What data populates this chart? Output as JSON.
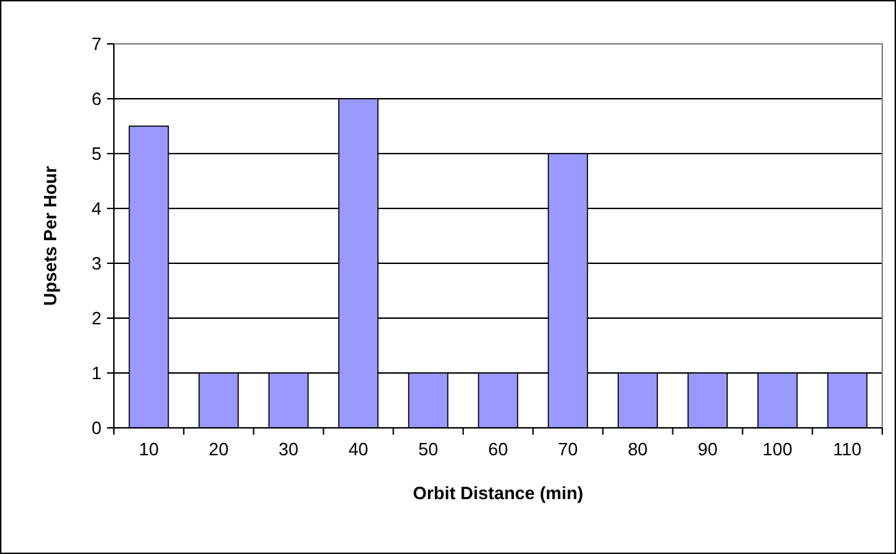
{
  "chart_data": {
    "type": "bar",
    "xlabel": "Orbit Distance (min)",
    "ylabel": "Upsets Per Hour",
    "categories": [
      "10",
      "20",
      "30",
      "40",
      "50",
      "60",
      "70",
      "80",
      "90",
      "100",
      "110"
    ],
    "values": [
      5.5,
      1,
      1,
      6,
      1,
      1,
      5,
      1,
      1,
      1,
      1
    ],
    "color": "#9999ff",
    "ylim": [
      0,
      7
    ],
    "yticks": [
      0,
      1,
      2,
      3,
      4,
      5,
      6,
      7
    ],
    "grid": "y"
  }
}
